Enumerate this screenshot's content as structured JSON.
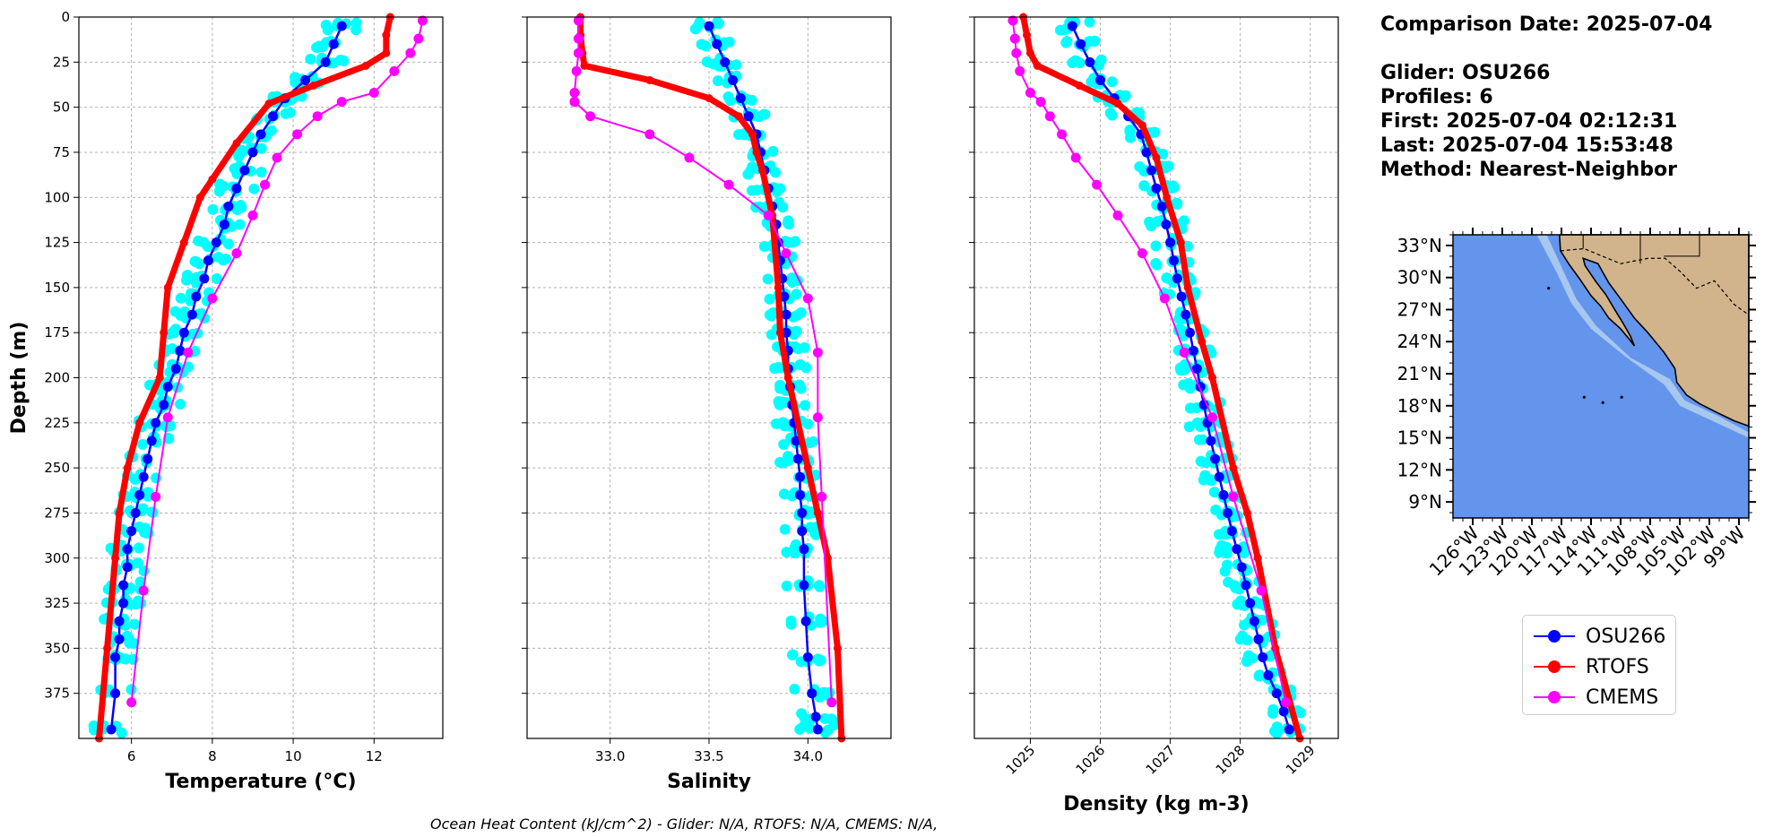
{
  "chart_data": [
    {
      "type": "line",
      "xlabel": "Temperature (°C)",
      "ylabel": "Depth (m)",
      "xlim": [
        4.7,
        13.7
      ],
      "ylim": [
        400,
        0
      ],
      "xticks": [
        6,
        8,
        10,
        12
      ],
      "yticks": [
        0,
        25,
        50,
        75,
        100,
        125,
        150,
        175,
        200,
        225,
        250,
        275,
        300,
        325,
        350,
        375
      ],
      "grid": true,
      "series": [
        {
          "name": "OSU266",
          "color": "#0000ff",
          "x": [
            11.2,
            11.0,
            10.8,
            10.3,
            9.8,
            9.5,
            9.2,
            9.0,
            8.8,
            8.6,
            8.4,
            8.3,
            8.1,
            7.9,
            7.8,
            7.6,
            7.5,
            7.3,
            7.2,
            7.1,
            6.9,
            6.8,
            6.6,
            6.5,
            6.4,
            6.3,
            6.2,
            6.1,
            6.0,
            5.9,
            5.9,
            5.8,
            5.8,
            5.7,
            5.7,
            5.6,
            5.6,
            5.5
          ],
          "y": [
            5,
            15,
            25,
            35,
            45,
            55,
            65,
            75,
            85,
            95,
            105,
            115,
            125,
            135,
            145,
            155,
            165,
            175,
            185,
            195,
            205,
            215,
            225,
            235,
            245,
            255,
            265,
            275,
            285,
            295,
            305,
            315,
            325,
            335,
            345,
            355,
            375,
            395
          ]
        },
        {
          "name": "RTOFS",
          "color": "#ff0000",
          "x": [
            12.4,
            12.3,
            12.3,
            11.8,
            10.5,
            9.4,
            8.6,
            8.0,
            7.7,
            7.3,
            6.9,
            6.8,
            6.7,
            6.2,
            5.9,
            5.7,
            5.6,
            5.4,
            5.2
          ],
          "y": [
            0,
            10,
            20,
            27,
            38,
            48,
            70,
            90,
            100,
            125,
            150,
            175,
            200,
            225,
            250,
            275,
            300,
            350,
            400
          ]
        },
        {
          "name": "CMEMS",
          "color": "#ff00ff",
          "x": [
            13.2,
            13.1,
            12.9,
            12.5,
            12.0,
            11.2,
            10.6,
            10.1,
            9.6,
            9.3,
            9.0,
            8.6,
            8.0,
            7.4,
            6.9,
            6.6,
            6.3,
            6.0
          ],
          "y": [
            2,
            12,
            20,
            30,
            42,
            47,
            55,
            65,
            78,
            93,
            110,
            131,
            156,
            186,
            222,
            266,
            318,
            380
          ]
        }
      ]
    },
    {
      "type": "line",
      "xlabel": "Salinity",
      "ylim": [
        400,
        0
      ],
      "xlim": [
        32.58,
        34.42
      ],
      "xticks": [
        33.0,
        33.5,
        34.0
      ],
      "xticklabels": [
        "33.0",
        "33.5",
        "34.0"
      ],
      "grid": true,
      "series": [
        {
          "name": "OSU266",
          "color": "#0000ff",
          "x": [
            33.5,
            33.54,
            33.58,
            33.62,
            33.66,
            33.7,
            33.74,
            33.76,
            33.78,
            33.8,
            33.82,
            33.84,
            33.85,
            33.86,
            33.87,
            33.88,
            33.89,
            33.89,
            33.9,
            33.9,
            33.91,
            33.92,
            33.93,
            33.94,
            33.95,
            33.96,
            33.96,
            33.97,
            33.97,
            33.98,
            33.98,
            33.99,
            34.0,
            34.02,
            34.04,
            34.05
          ],
          "y": [
            5,
            15,
            25,
            35,
            45,
            55,
            65,
            75,
            85,
            95,
            105,
            115,
            125,
            135,
            145,
            155,
            165,
            175,
            185,
            195,
            205,
            215,
            225,
            235,
            245,
            255,
            265,
            275,
            285,
            295,
            315,
            335,
            355,
            375,
            388,
            395
          ]
        },
        {
          "name": "RTOFS",
          "color": "#ff0000",
          "x": [
            32.85,
            32.85,
            32.86,
            32.87,
            33.2,
            33.5,
            33.65,
            33.72,
            33.74,
            33.77,
            33.82,
            33.85,
            33.86,
            33.9,
            34.0,
            34.05,
            34.1,
            34.15,
            34.17
          ],
          "y": [
            0,
            10,
            20,
            27,
            35,
            45,
            55,
            65,
            75,
            85,
            110,
            150,
            175,
            200,
            250,
            275,
            300,
            350,
            400
          ]
        },
        {
          "name": "CMEMS",
          "color": "#ff00ff",
          "x": [
            32.84,
            32.84,
            32.84,
            32.83,
            32.82,
            32.82,
            32.82,
            32.9,
            33.2,
            33.4,
            33.6,
            33.8,
            33.89,
            34.0,
            34.05,
            34.05,
            34.07,
            34.12
          ],
          "y": [
            2,
            12,
            20,
            30,
            42,
            47,
            47,
            55,
            65,
            78,
            93,
            110,
            131,
            156,
            186,
            222,
            266,
            380
          ]
        }
      ]
    },
    {
      "type": "line",
      "xlabel": "Density (kg m-3)",
      "ylim": [
        400,
        0
      ],
      "xlim": [
        1024.2,
        1029.4
      ],
      "xticks": [
        1025,
        1026,
        1027,
        1028,
        1029
      ],
      "grid": true,
      "series": [
        {
          "name": "OSU266",
          "color": "#0000ff",
          "x": [
            1025.6,
            1025.72,
            1025.85,
            1026.0,
            1026.2,
            1026.4,
            1026.58,
            1026.66,
            1026.73,
            1026.8,
            1026.88,
            1026.94,
            1027.0,
            1027.05,
            1027.1,
            1027.16,
            1027.22,
            1027.28,
            1027.33,
            1027.38,
            1027.43,
            1027.48,
            1027.53,
            1027.58,
            1027.64,
            1027.7,
            1027.76,
            1027.82,
            1027.88,
            1027.95,
            1028.02,
            1028.08,
            1028.14,
            1028.2,
            1028.26,
            1028.32,
            1028.4,
            1028.52,
            1028.62,
            1028.7
          ],
          "y": [
            5,
            15,
            25,
            35,
            45,
            55,
            65,
            75,
            85,
            95,
            105,
            115,
            125,
            135,
            145,
            155,
            165,
            175,
            185,
            195,
            205,
            215,
            225,
            235,
            245,
            255,
            265,
            275,
            285,
            295,
            305,
            315,
            325,
            335,
            345,
            355,
            365,
            375,
            385,
            395
          ]
        },
        {
          "name": "RTOFS",
          "color": "#ff0000",
          "x": [
            1024.9,
            1024.95,
            1025.0,
            1025.1,
            1025.7,
            1026.25,
            1026.6,
            1026.8,
            1026.95,
            1027.15,
            1027.25,
            1027.45,
            1027.6,
            1027.9,
            1028.1,
            1028.25,
            1028.5,
            1028.85
          ],
          "y": [
            0,
            10,
            20,
            27,
            38,
            48,
            60,
            78,
            100,
            125,
            150,
            180,
            200,
            250,
            275,
            300,
            350,
            400
          ]
        },
        {
          "name": "CMEMS",
          "color": "#ff00ff",
          "x": [
            1024.75,
            1024.78,
            1024.8,
            1024.85,
            1025.0,
            1025.15,
            1025.28,
            1025.45,
            1025.65,
            1025.95,
            1026.25,
            1026.6,
            1026.92,
            1027.2,
            1027.6,
            1027.9,
            1028.3,
            1028.65
          ],
          "y": [
            2,
            12,
            20,
            30,
            42,
            47,
            55,
            65,
            78,
            93,
            110,
            131,
            156,
            186,
            222,
            266,
            318,
            380
          ]
        }
      ]
    },
    {
      "type": "map",
      "yticks_labels": [
        "33°N",
        "30°N",
        "27°N",
        "24°N",
        "21°N",
        "18°N",
        "15°N",
        "12°N",
        "9°N"
      ],
      "xticks_labels": [
        "126°W",
        "123°W",
        "120°W",
        "117°W",
        "114°W",
        "111°W",
        "108°W",
        "105°W",
        "102°W",
        "99°W"
      ],
      "lat_range": [
        7.5,
        34.0
      ],
      "lon_range": [
        -128.0,
        -98.0
      ],
      "ocean_color": "#6495ed",
      "land_color": "#d2b48c",
      "shelf_color": "#a8c7ef"
    }
  ],
  "info": {
    "comparison_date": "Comparison Date: 2025-07-04",
    "glider": "Glider: OSU266",
    "profiles": "Profiles: 6",
    "first": "First: 2025-07-04 02:12:31",
    "last": "Last: 2025-07-04 15:53:48",
    "method": "Method: Nearest-Neighbor"
  },
  "legend": {
    "items": [
      {
        "name": "OSU266",
        "color": "#0000ff"
      },
      {
        "name": "RTOFS",
        "color": "#ff0000"
      },
      {
        "name": "CMEMS",
        "color": "#ff00ff"
      }
    ]
  },
  "footer": "Ocean Heat Content (kJ/cm^2) - Glider: N/A,  RTOFS: N/A,  CMEMS: N/A,",
  "colors": {
    "glider_spread": "#00ffff"
  }
}
